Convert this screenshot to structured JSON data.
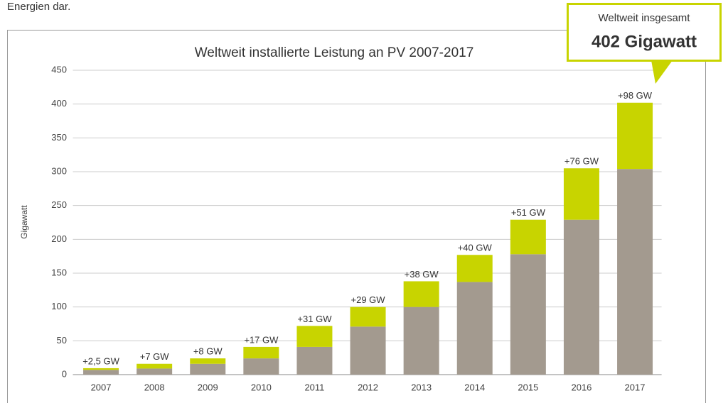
{
  "intro_text": "Energien dar.",
  "callout": {
    "label": "Weltweit insgesamt",
    "value": "402 Gigawatt"
  },
  "chart_data": {
    "type": "stacked_bar",
    "title": "Weltweit installierte Leistung an PV 2007-2017",
    "ylabel": "Gigawatt",
    "categories": [
      "2007",
      "2008",
      "2009",
      "2010",
      "2011",
      "2012",
      "2013",
      "2014",
      "2015",
      "2016",
      "2017"
    ],
    "series": [
      {
        "color": "#a39a8f",
        "values": [
          7,
          9,
          16,
          24,
          41,
          71,
          100,
          137,
          178,
          229,
          304
        ]
      },
      {
        "color": "#c8d400",
        "values": [
          2.5,
          7,
          8,
          17,
          31,
          29,
          38,
          40,
          51,
          76,
          98
        ],
        "value_labels": [
          "+2,5 GW",
          "+7 GW",
          "+8 GW",
          "+17 GW",
          "+31 GW",
          "+29 GW",
          "+38 GW",
          "+40 GW",
          "+51 GW",
          "+76 GW",
          "+98 GW"
        ]
      }
    ],
    "ylim": [
      0,
      450
    ],
    "yticks": [
      0,
      50,
      100,
      150,
      200,
      250,
      300,
      350,
      400,
      450
    ],
    "grid": true
  }
}
